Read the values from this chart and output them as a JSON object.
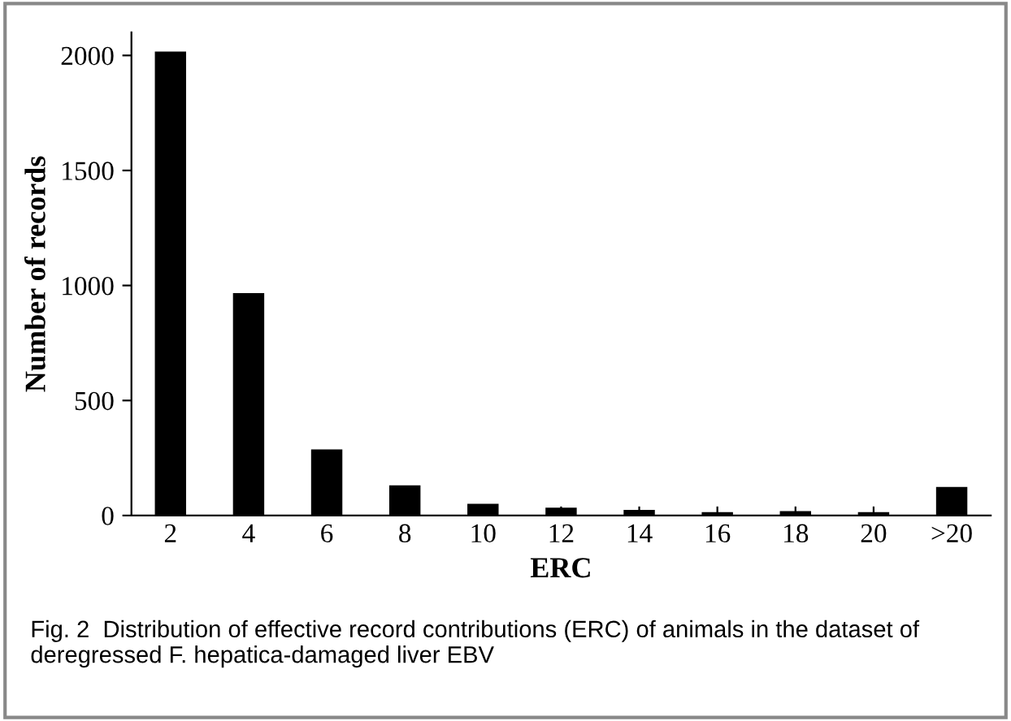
{
  "chart_data": {
    "type": "bar",
    "xlabel": "ERC",
    "ylabel": "Number of records",
    "categories": [
      "2",
      "4",
      "6",
      "8",
      "10",
      "12",
      "14",
      "16",
      "18",
      "20",
      ">20"
    ],
    "values": [
      2017,
      967,
      287,
      131,
      51,
      34,
      24,
      15,
      19,
      15,
      124
    ],
    "color": "#000000",
    "ylim": [
      0,
      2100
    ],
    "yticks": [
      0,
      500,
      1000,
      1500,
      2000
    ],
    "grid": false,
    "legend": false,
    "annotations": [
      "Fig. 2  Distribution of effective record contributions (ERC) of animals in the dataset of deregressed F. hepatica-damaged liver EBV"
    ]
  }
}
